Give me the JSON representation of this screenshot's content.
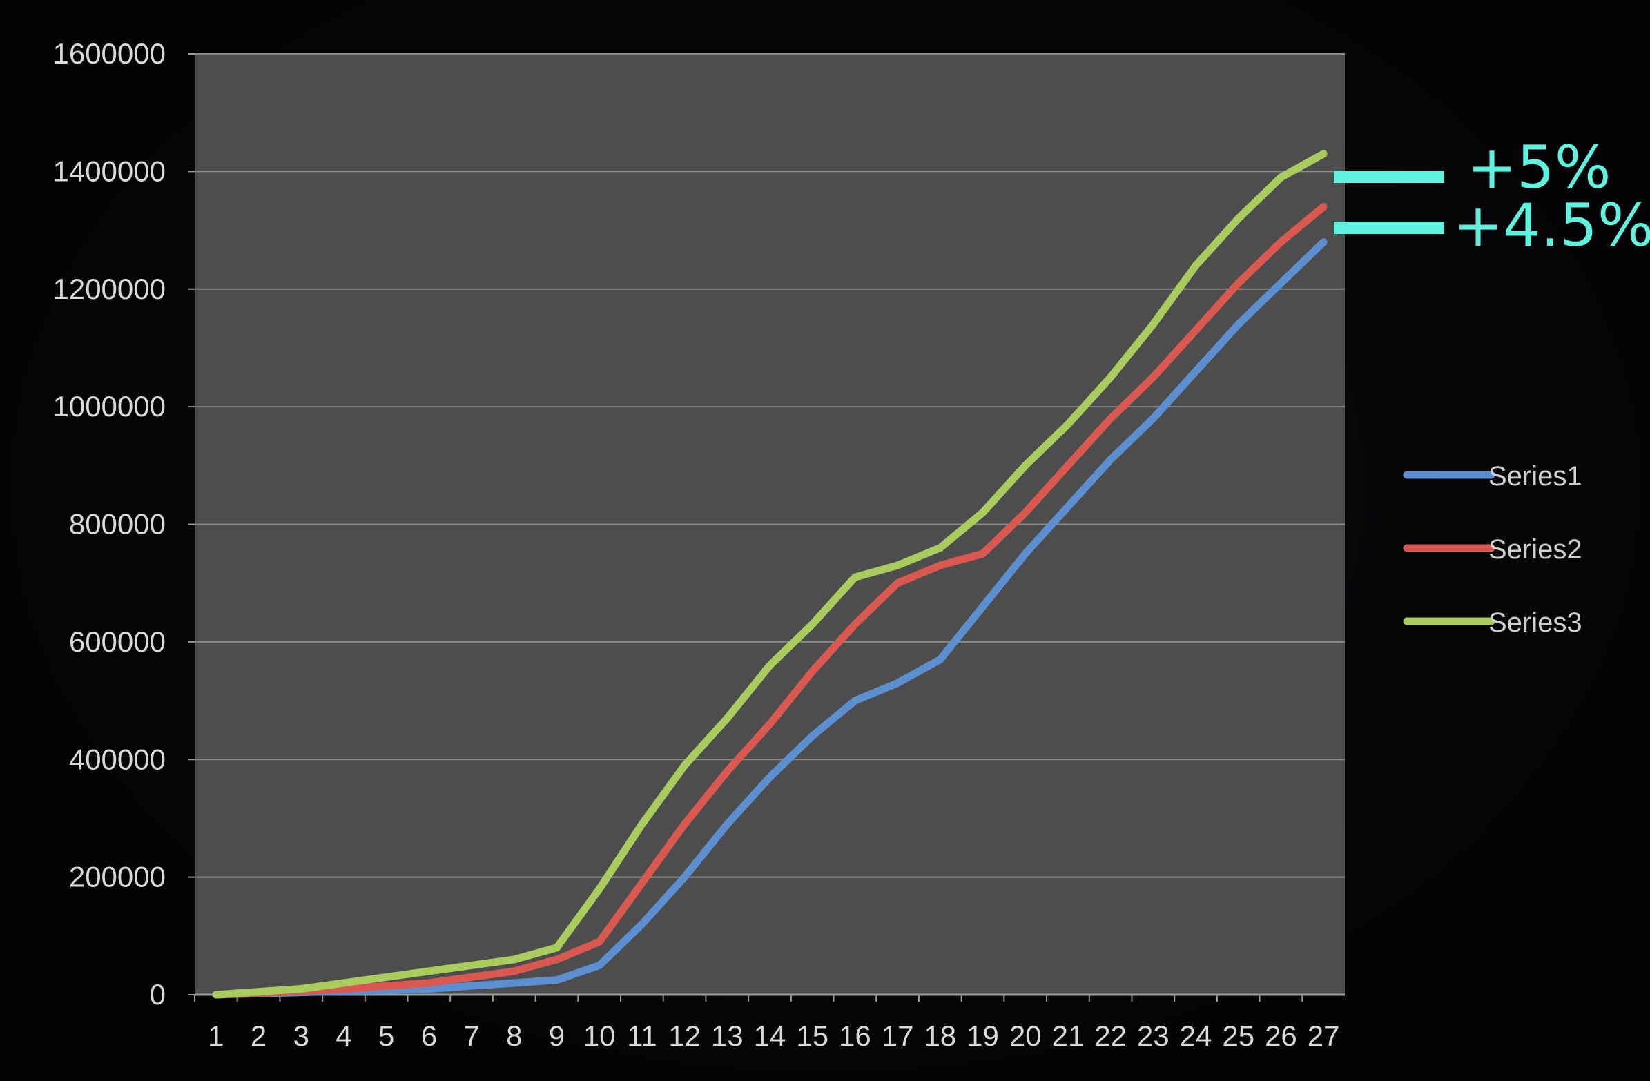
{
  "chart_data": {
    "type": "line",
    "title": "",
    "xlabel": "",
    "ylabel": "",
    "ylim": [
      0,
      1600000
    ],
    "grid": true,
    "legend_position": "right",
    "categories": [
      "1",
      "2",
      "3",
      "4",
      "5",
      "6",
      "7",
      "8",
      "9",
      "10",
      "11",
      "12",
      "13",
      "14",
      "15",
      "16",
      "17",
      "18",
      "19",
      "20",
      "21",
      "22",
      "23",
      "24",
      "25",
      "26",
      "27"
    ],
    "yticks": [
      "0",
      "200000",
      "400000",
      "600000",
      "800000",
      "1000000",
      "1200000",
      "1400000",
      "1600000"
    ],
    "series": [
      {
        "name": "Series1",
        "color": "#5b8fd0",
        "values": [
          0,
          2000,
          4000,
          6000,
          8000,
          10000,
          15000,
          20000,
          25000,
          50000,
          120000,
          200000,
          290000,
          370000,
          440000,
          500000,
          530000,
          570000,
          660000,
          750000,
          830000,
          910000,
          980000,
          1060000,
          1140000,
          1210000,
          1280000
        ]
      },
      {
        "name": "Series2",
        "color": "#d9584f",
        "values": [
          0,
          3000,
          6000,
          10000,
          15000,
          20000,
          30000,
          40000,
          60000,
          90000,
          190000,
          290000,
          380000,
          460000,
          550000,
          630000,
          700000,
          730000,
          750000,
          820000,
          900000,
          980000,
          1050000,
          1130000,
          1210000,
          1280000,
          1340000
        ]
      },
      {
        "name": "Series3",
        "color": "#a8cc5e",
        "values": [
          0,
          5000,
          10000,
          20000,
          30000,
          40000,
          50000,
          60000,
          80000,
          180000,
          290000,
          390000,
          470000,
          560000,
          630000,
          710000,
          730000,
          760000,
          820000,
          900000,
          970000,
          1050000,
          1140000,
          1240000,
          1320000,
          1390000,
          1430000
        ]
      }
    ],
    "annotations": [
      {
        "text": "+5%",
        "color": "#5ff2df"
      },
      {
        "text": "+4.5%",
        "color": "#5ff2df"
      }
    ]
  }
}
